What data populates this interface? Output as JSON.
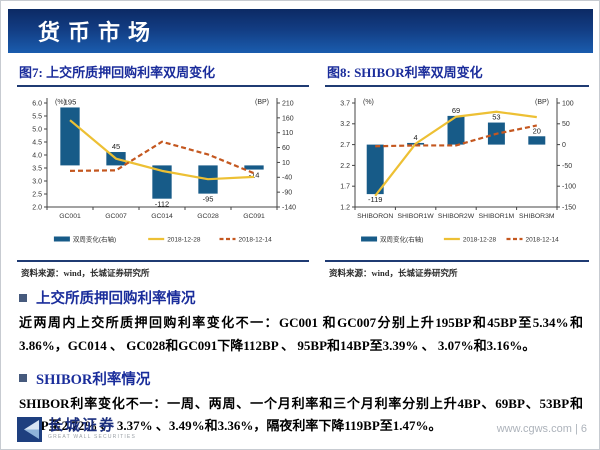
{
  "header": {
    "title": "货币市场"
  },
  "colors": {
    "bar": "#175B88",
    "line_solid": "#EDC034",
    "line_dashed": "#C4571F",
    "accent_navy": "#1F3B73"
  },
  "legend": [
    "双周变化(右轴)",
    "2018-12-28",
    "2018-12-14"
  ],
  "chart_data": [
    {
      "type": "bar",
      "title": "图7:  上交所质押回购利率双周变化",
      "source": "资料来源：wind，长城证券研究所",
      "categories": [
        "GC001",
        "GC007",
        "GC014",
        "GC028",
        "GC091"
      ],
      "bar_series": {
        "name": "双周变化(右轴)",
        "axis": "right",
        "values": [
          195,
          45,
          -112,
          -95,
          -14
        ]
      },
      "bar_labels": [
        "195",
        "45",
        "-112",
        "-95",
        "-14"
      ],
      "line_series": [
        {
          "name": "2018-12-28",
          "style": "solid",
          "color": "#EDC034",
          "axis": "left",
          "values": [
            5.34,
            3.86,
            3.39,
            3.07,
            3.16
          ]
        },
        {
          "name": "2018-12-14",
          "style": "dashed",
          "color": "#C4571F",
          "axis": "left",
          "values": [
            3.39,
            3.41,
            4.51,
            4.02,
            3.3
          ]
        }
      ],
      "left_axis": {
        "label": "(%)",
        "min": 2.0,
        "max": 6.0,
        "ticks": [
          "6.0",
          "5.5",
          "5.0",
          "4.5",
          "4.0",
          "3.5",
          "3.0",
          "2.5",
          "2.0"
        ]
      },
      "right_axis": {
        "label": "(BP)",
        "min": -140,
        "max": 210,
        "ticks": [
          "210",
          "160",
          "110",
          "60",
          "10",
          "-40",
          "-90",
          "-140"
        ]
      },
      "grid": false,
      "legend_position": "bottom"
    },
    {
      "type": "bar",
      "title": "图8:  SHIBOR利率双周变化",
      "source": "资料来源：wind，长城证券研究所",
      "categories": [
        "SHIBORON",
        "SHIBOR1W",
        "SHIBOR2W",
        "SHIBOR1M",
        "SHIBOR3M"
      ],
      "bar_series": {
        "name": "双周变化(右轴)",
        "axis": "right",
        "values": [
          -119,
          4,
          69,
          53,
          20
        ]
      },
      "bar_labels": [
        "-119",
        "4",
        "69",
        "53",
        "20"
      ],
      "line_series": [
        {
          "name": "2018-12-28",
          "style": "solid",
          "color": "#EDC034",
          "axis": "left",
          "values": [
            1.47,
            2.72,
            3.37,
            3.49,
            3.36
          ]
        },
        {
          "name": "2018-12-14",
          "style": "dashed",
          "color": "#C4571F",
          "axis": "left",
          "values": [
            2.66,
            2.68,
            2.68,
            2.96,
            3.16
          ]
        }
      ],
      "left_axis": {
        "label": "(%)",
        "min": 1.2,
        "max": 3.7,
        "ticks": [
          "3.7",
          "3.2",
          "2.7",
          "2.2",
          "1.7",
          "1.2"
        ]
      },
      "right_axis": {
        "label": "(BP)",
        "min": -150,
        "max": 100,
        "ticks": [
          "100",
          "50",
          "0",
          "-50",
          "-100",
          "-150"
        ]
      },
      "grid": false,
      "legend_position": "bottom"
    }
  ],
  "sections": [
    {
      "heading": "上交所质押回购利率情况",
      "body": "近两周内上交所质押回购利率变化不一：GC001 和GC007分别上升195BP和45BP至5.34%和3.86%，GC014 、 GC028和GC091下降112BP 、 95BP和14BP至3.39% 、 3.07%和3.16%。"
    },
    {
      "heading": "SHIBOR利率情况",
      "body": "SHIBOR利率变化不一：一周、两周、一个月利率和三个月利率分别上升4BP、69BP、53BP和20BP至2.72% 、 3.37% 、3.49%和3.36%，隔夜利率下降119BP至1.47%。"
    }
  ],
  "footer": {
    "logo_text": "长城证券",
    "logo_subtext": "GREAT WALL SECURITIES",
    "page_info": "www.cgws.com | 6"
  }
}
